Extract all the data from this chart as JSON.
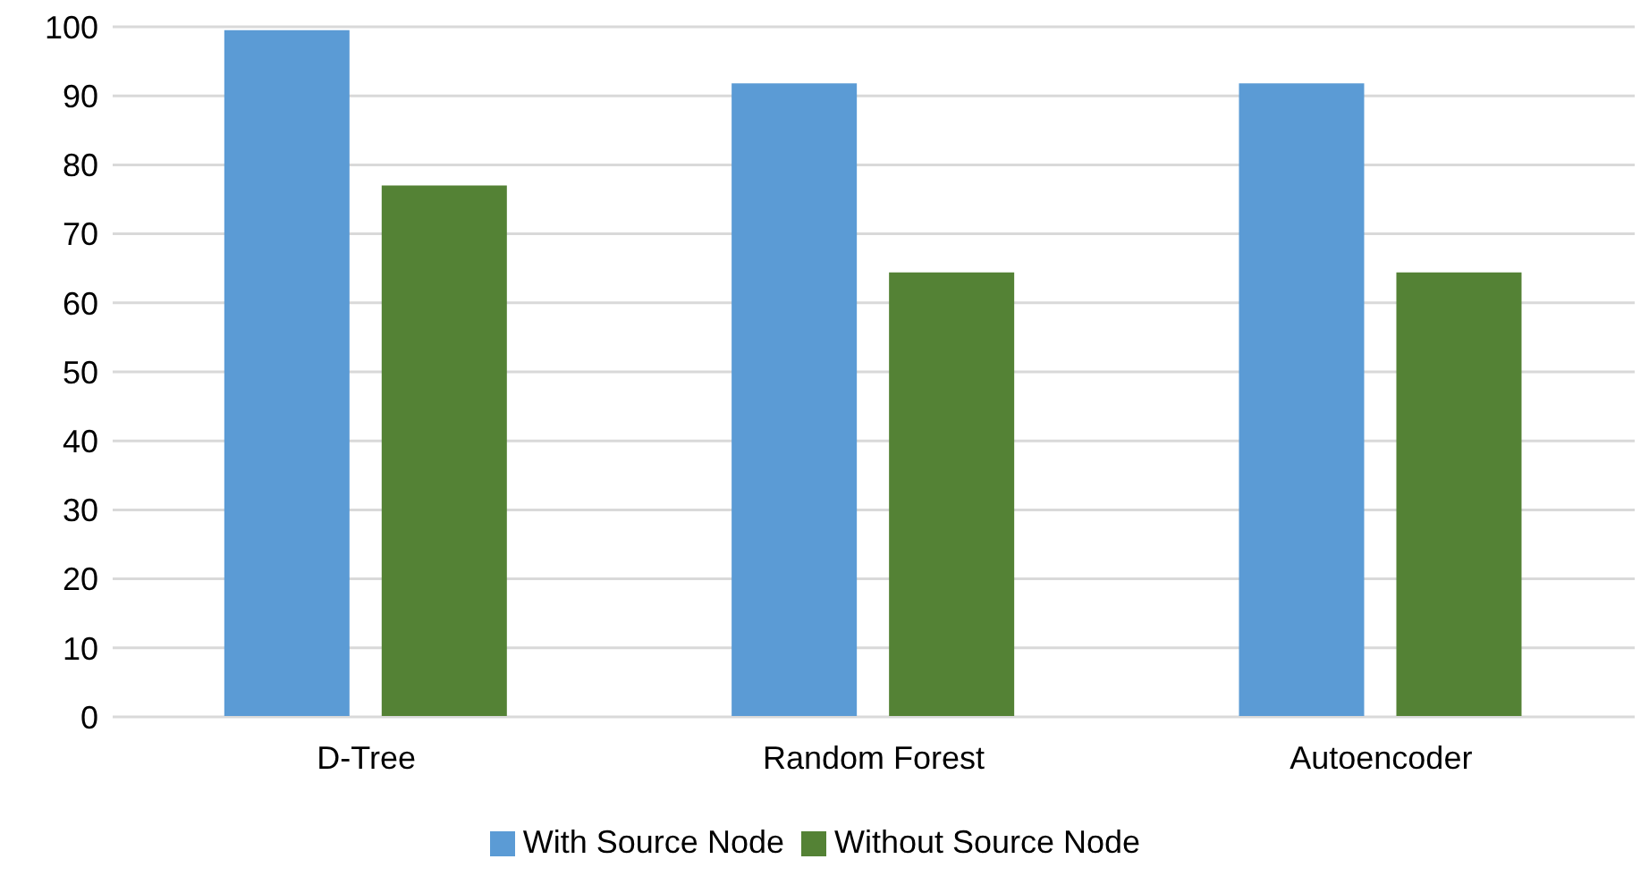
{
  "chart_data": {
    "type": "bar",
    "categories": [
      "D-Tree",
      "Random Forest",
      "Autoencoder"
    ],
    "series": [
      {
        "name": "With Source Node",
        "color": "#5b9bd5",
        "values": [
          99.5,
          91.8,
          91.8
        ]
      },
      {
        "name": "Without Source Node",
        "color": "#548235",
        "values": [
          77.0,
          64.4,
          64.4
        ]
      }
    ],
    "ylim": [
      0,
      100
    ],
    "yticks": [
      0,
      10,
      20,
      30,
      40,
      50,
      60,
      70,
      80,
      90,
      100
    ],
    "grid": "y",
    "legend": "bottom"
  }
}
